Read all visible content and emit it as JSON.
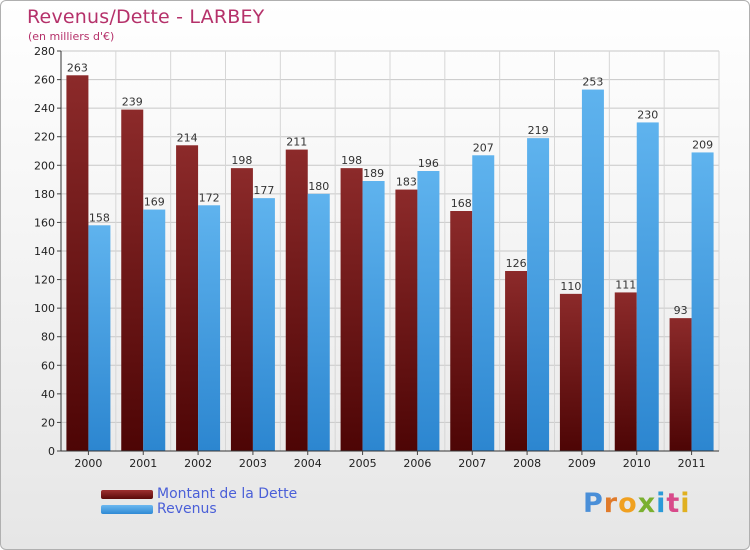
{
  "chart_data": {
    "type": "bar",
    "title": "Revenus/Dette - LARBEY",
    "subtitle": "(en milliers d'€)",
    "categories": [
      "2000",
      "2001",
      "2002",
      "2003",
      "2004",
      "2005",
      "2006",
      "2007",
      "2008",
      "2009",
      "2010",
      "2011"
    ],
    "series": [
      {
        "name": "Montant de la Dette",
        "values": [
          263,
          239,
          214,
          198,
          211,
          198,
          183,
          168,
          126,
          110,
          111,
          93
        ]
      },
      {
        "name": "Revenus",
        "values": [
          158,
          169,
          172,
          177,
          180,
          189,
          196,
          207,
          219,
          253,
          230,
          209
        ]
      }
    ],
    "ylim": [
      0,
      280
    ],
    "yticks": [
      0,
      20,
      40,
      60,
      80,
      100,
      120,
      140,
      160,
      180,
      200,
      220,
      240,
      260,
      280
    ],
    "grid": true,
    "legend": "bottom-left"
  },
  "colors": {
    "debt_top": "#8c2a2a",
    "debt_bottom": "#4d0505",
    "rev_top": "#5fb3ee",
    "rev_bottom": "#2c86d0",
    "title": "#b5316a",
    "legend_text": "#4a5fd8"
  },
  "logo": {
    "letters": [
      "P",
      "r",
      "o",
      "x",
      "i",
      "t",
      "i"
    ]
  }
}
